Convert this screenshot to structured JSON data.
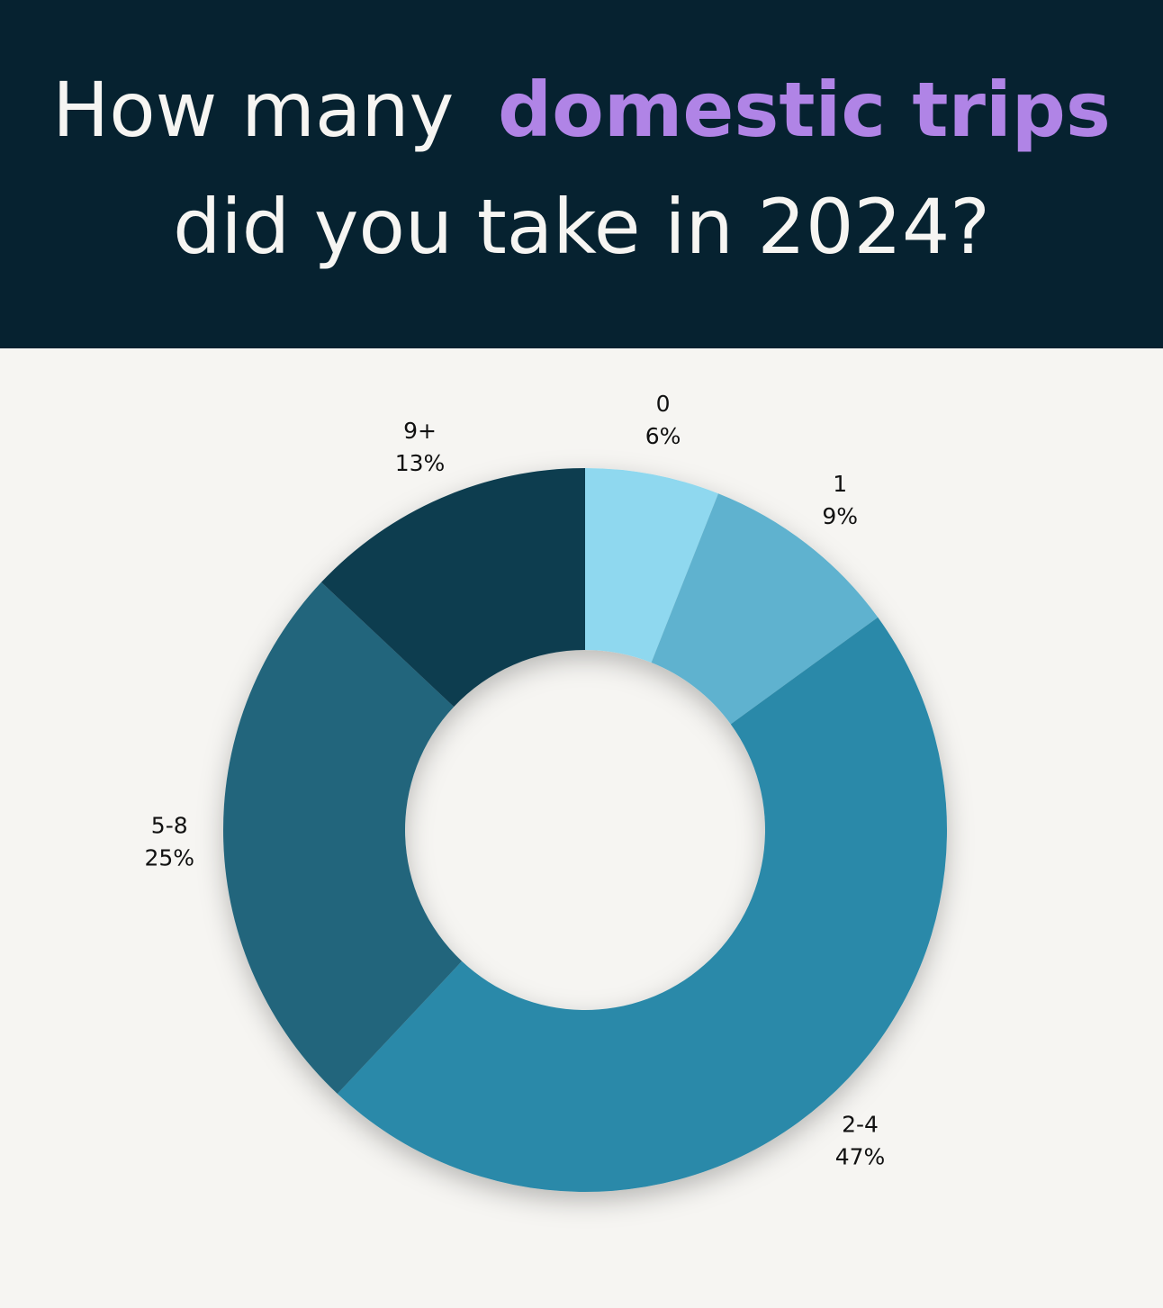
{
  "chart_data": {
    "type": "donut",
    "title": [
      "How many",
      "domestic trips",
      "did you take in 2024?"
    ],
    "title_color": "#f6f5f2",
    "title_highlight_color": "#b084e6",
    "categories": [
      "0",
      "1",
      "2-4",
      "5-8",
      "9+"
    ],
    "values": [
      6,
      9,
      47,
      25,
      13
    ],
    "value_labels": [
      "6%",
      "9%",
      "47%",
      "25%",
      "13%"
    ],
    "colors": [
      "#8fd8ef",
      "#5eb2cf",
      "#2a89a9",
      "#21657c",
      "#0a3c50"
    ]
  }
}
